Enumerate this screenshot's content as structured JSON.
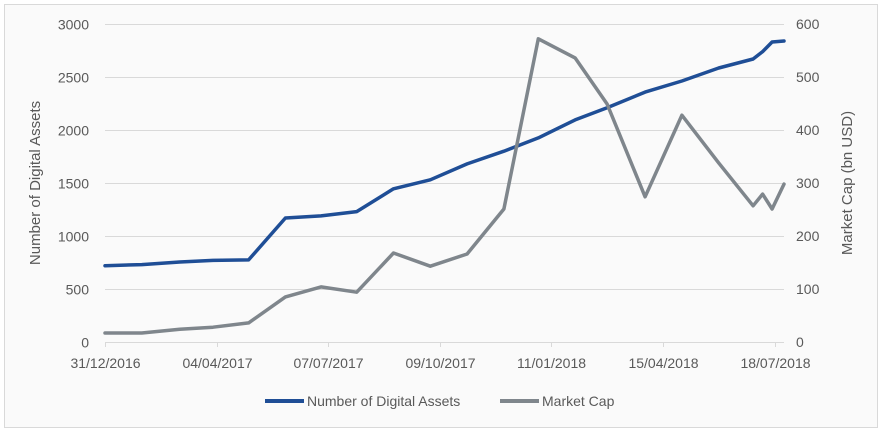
{
  "chart_data": {
    "type": "line",
    "title": "",
    "x_unit": "days since 31/12/2016",
    "x": [
      0,
      31,
      63,
      91,
      121,
      152,
      182,
      212,
      243,
      274,
      305,
      336,
      365,
      396,
      423,
      455,
      486,
      517,
      546,
      554,
      562,
      572
    ],
    "xlim": [
      0,
      572
    ],
    "x_ticks": [
      0,
      94,
      188,
      282,
      376,
      470,
      564
    ],
    "x_tick_labels": [
      "31/12/2016",
      "04/04/2017",
      "07/07/2017",
      "09/10/2017",
      "11/01/2018",
      "15/04/2018",
      "18/07/2018"
    ],
    "ylabel": "Number of Digital Assets",
    "ylim": [
      0,
      3000
    ],
    "y_ticks": [
      0,
      500,
      1000,
      1500,
      2000,
      2500,
      3000
    ],
    "y_tick_labels": [
      "0",
      "500",
      "1000",
      "1500",
      "2000",
      "2500",
      "3000"
    ],
    "y2label": "Market Cap (bn USD)",
    "y2lim": [
      0,
      600
    ],
    "y2_ticks": [
      0,
      100,
      200,
      300,
      400,
      500,
      600
    ],
    "y2_tick_labels": [
      "0",
      "100",
      "200",
      "300",
      "400",
      "500",
      "600"
    ],
    "grid": true,
    "legend_position": "bottom",
    "series": [
      {
        "name": "Number of Digital Assets",
        "axis": "left",
        "color": "#1f4e96",
        "values": [
          720,
          730,
          755,
          770,
          775,
          1170,
          1190,
          1230,
          1445,
          1530,
          1680,
          1800,
          1925,
          2095,
          2210,
          2358,
          2462,
          2585,
          2670,
          2740,
          2830,
          2840
        ]
      },
      {
        "name": "Market Cap",
        "axis": "right",
        "color": "#7f868c",
        "values": [
          17,
          17,
          24,
          28,
          36,
          85,
          104,
          94,
          168,
          143,
          166,
          251,
          572,
          536,
          449,
          274,
          428,
          338,
          257,
          279,
          251,
          298
        ]
      }
    ]
  }
}
